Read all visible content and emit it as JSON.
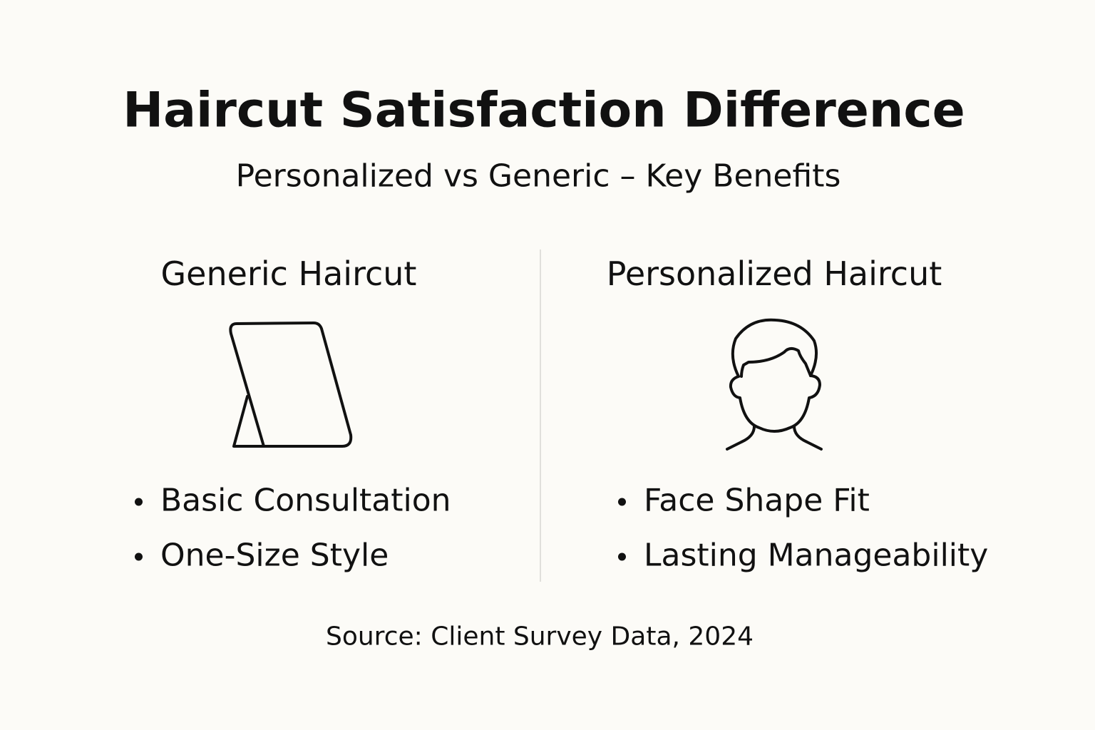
{
  "header": {
    "title": "Haircut Satisfaction Difference",
    "subtitle": "Personalized vs Generic – Key Benefits"
  },
  "columns": [
    {
      "heading": "Generic Haircut",
      "items": [
        "Basic Consultation",
        "One-Size Style"
      ]
    },
    {
      "heading": "Personalized Haircut",
      "items": [
        "Face Shape Fit",
        "Lasting Manageability"
      ]
    }
  ],
  "source": "Source: Client Survey Data, 2024"
}
